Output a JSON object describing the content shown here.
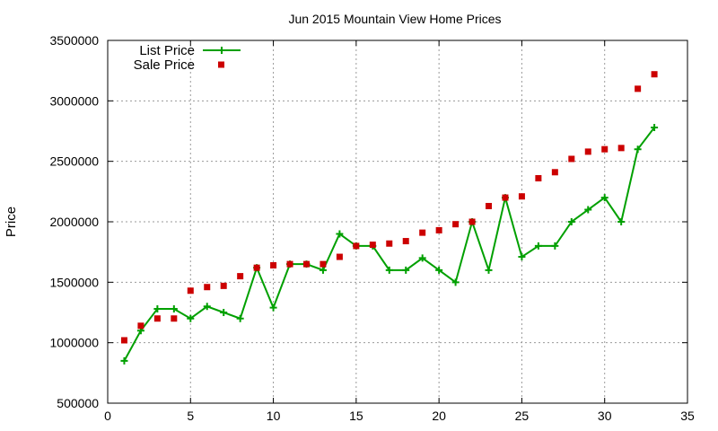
{
  "chart_data": {
    "type": "line",
    "title": "Jun 2015 Mountain View Home Prices",
    "xlabel": "",
    "ylabel": "Price",
    "xlim": [
      0,
      35
    ],
    "ylim": [
      500000,
      3500000
    ],
    "xticks": [
      0,
      5,
      10,
      15,
      20,
      25,
      30,
      35
    ],
    "yticks": [
      500000,
      1000000,
      1500000,
      2000000,
      2500000,
      3000000,
      3500000
    ],
    "grid": true,
    "legend_position": "top-left",
    "x": [
      1,
      2,
      3,
      4,
      5,
      6,
      7,
      8,
      9,
      10,
      11,
      12,
      13,
      14,
      15,
      16,
      17,
      18,
      19,
      20,
      21,
      22,
      23,
      24,
      25,
      26,
      27,
      28,
      29,
      30,
      31,
      32,
      33
    ],
    "series": [
      {
        "name": "List Price",
        "style": "line-with-plus-markers",
        "color": "#00a000",
        "values": [
          850000,
          1100000,
          1280000,
          1280000,
          1200000,
          1300000,
          1250000,
          1200000,
          1620000,
          1290000,
          1650000,
          1650000,
          1600000,
          1900000,
          1800000,
          1800000,
          1600000,
          1600000,
          1700000,
          1600000,
          1500000,
          2000000,
          1600000,
          2200000,
          1710000,
          1800000,
          1800000,
          2000000,
          2100000,
          2200000,
          2000000,
          2600000,
          2780000
        ]
      },
      {
        "name": "Sale Price",
        "style": "square-markers",
        "color": "#cc0000",
        "values": [
          1020000,
          1140000,
          1200000,
          1200000,
          1430000,
          1460000,
          1470000,
          1550000,
          1620000,
          1640000,
          1650000,
          1650000,
          1650000,
          1710000,
          1800000,
          1810000,
          1820000,
          1840000,
          1910000,
          1930000,
          1980000,
          2000000,
          2130000,
          2200000,
          2210000,
          2360000,
          2410000,
          2520000,
          2580000,
          2600000,
          2610000,
          3100000,
          3220000
        ]
      }
    ]
  }
}
